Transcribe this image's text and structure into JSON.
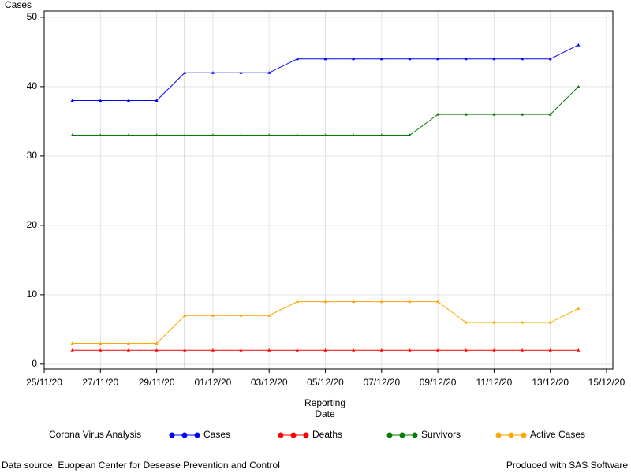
{
  "chart_data": {
    "type": "line",
    "ylabel": "Cases",
    "xlabel": [
      "Reporting",
      "Date"
    ],
    "legend_title": "Corona Virus Analysis",
    "footnote_left": "Data source: Euopean Center for Desease Prevention and Control",
    "footnote_right": "Produced with SAS Software",
    "x": [
      "2020-11-26",
      "2020-11-27",
      "2020-11-28",
      "2020-11-29",
      "2020-11-30",
      "2020-12-01",
      "2020-12-02",
      "2020-12-03",
      "2020-12-04",
      "2020-12-05",
      "2020-12-06",
      "2020-12-07",
      "2020-12-08",
      "2020-12-09",
      "2020-12-10",
      "2020-12-11",
      "2020-12-12",
      "2020-12-13",
      "2020-12-14"
    ],
    "series": [
      {
        "name": "Cases",
        "color": "#0000ff",
        "values": [
          38,
          38,
          38,
          38,
          42,
          42,
          42,
          42,
          44,
          44,
          44,
          44,
          44,
          44,
          44,
          44,
          44,
          44,
          46
        ]
      },
      {
        "name": "Deaths",
        "color": "#ff0000",
        "values": [
          2,
          2,
          2,
          2,
          2,
          2,
          2,
          2,
          2,
          2,
          2,
          2,
          2,
          2,
          2,
          2,
          2,
          2,
          2
        ]
      },
      {
        "name": "Survivors",
        "color": "#008000",
        "values": [
          33,
          33,
          33,
          33,
          33,
          33,
          33,
          33,
          33,
          33,
          33,
          33,
          33,
          36,
          36,
          36,
          36,
          36,
          40
        ]
      },
      {
        "name": "Active Cases",
        "color": "#ffa500",
        "values": [
          3,
          3,
          3,
          3,
          7,
          7,
          7,
          7,
          9,
          9,
          9,
          9,
          9,
          9,
          6,
          6,
          6,
          6,
          8
        ]
      }
    ],
    "xlim": [
      "2020-11-25",
      "2020-12-15"
    ],
    "xticks": [
      {
        "value": "2020-11-25",
        "label": "25/11/20"
      },
      {
        "value": "2020-11-27",
        "label": "27/11/20"
      },
      {
        "value": "2020-11-29",
        "label": "29/11/20"
      },
      {
        "value": "2020-12-01",
        "label": "01/12/20"
      },
      {
        "value": "2020-12-03",
        "label": "03/12/20"
      },
      {
        "value": "2020-12-05",
        "label": "05/12/20"
      },
      {
        "value": "2020-12-07",
        "label": "07/12/20"
      },
      {
        "value": "2020-12-09",
        "label": "09/12/20"
      },
      {
        "value": "2020-12-11",
        "label": "11/12/20"
      },
      {
        "value": "2020-12-13",
        "label": "13/12/20"
      },
      {
        "value": "2020-12-15",
        "label": "15/12/20"
      }
    ],
    "ylim": [
      -0.7,
      50.9
    ],
    "yticks": [
      0,
      10,
      20,
      30,
      40,
      50
    ],
    "reference_line_x": "2020-11-30",
    "grid": true
  }
}
